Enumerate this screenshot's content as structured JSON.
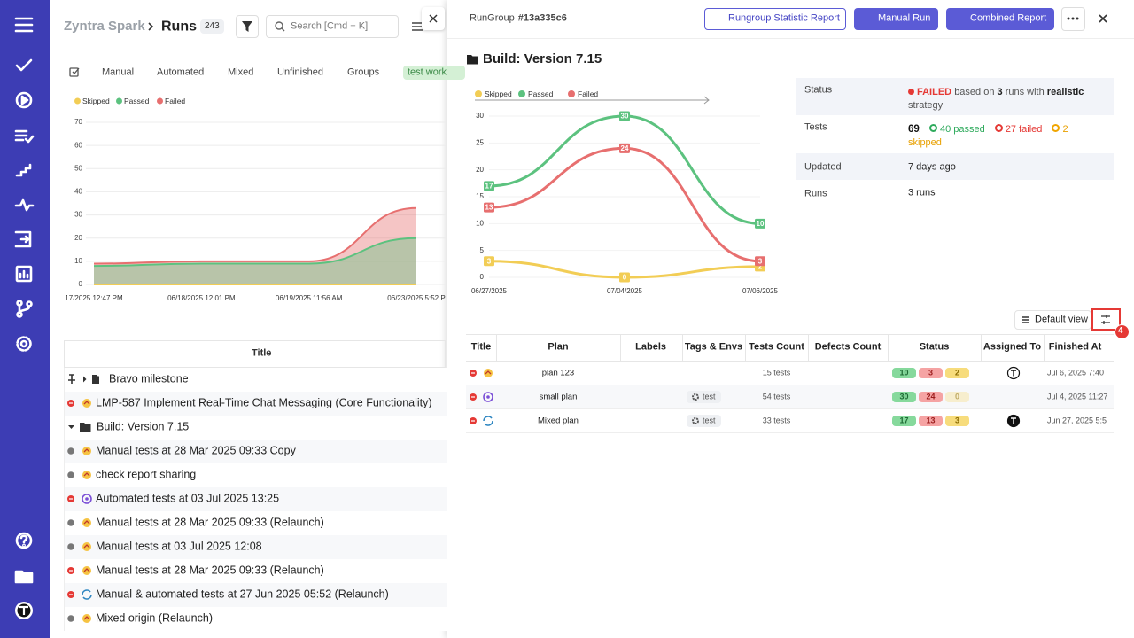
{
  "left": {
    "header": {
      "project": "Zyntra Spark",
      "page": "Runs",
      "count": 243,
      "search_placeholder": "Search [Cmd + K]"
    },
    "tabs": [
      "Manual",
      "Automated",
      "Mixed",
      "Unfinished",
      "Groups",
      "test work"
    ],
    "chart": {
      "type": "area",
      "categories": [
        "17/2025 12:47 PM",
        "06/18/2025 12:01 PM",
        "06/19/2025 11:56 AM",
        "06/23/2025 5:52 P"
      ],
      "series": [
        {
          "name": "Skipped",
          "color": "#f2cd55",
          "values": [
            0,
            0,
            0,
            0
          ]
        },
        {
          "name": "Passed",
          "color": "#5cc27f",
          "values": [
            8,
            9,
            9,
            20
          ]
        },
        {
          "name": "Failed",
          "color": "#e76f6f",
          "values": [
            9,
            10,
            10,
            33
          ]
        }
      ],
      "ylim": [
        0,
        70
      ],
      "yticks": [
        0,
        10,
        20,
        30,
        40,
        50,
        60,
        70
      ],
      "grid": true
    },
    "table": {
      "header": "Title",
      "rows": [
        {
          "title": "Bravo milestone",
          "kind": "milestone"
        },
        {
          "title": "LMP-587 Implement Real-Time Chat Messaging (Core Functionality)",
          "status": "failed",
          "icon": "manual"
        },
        {
          "title": "Build: Version 7.15",
          "kind": "group"
        },
        {
          "title": "Manual tests at 28 Mar 2025 09:33 Copy",
          "status": "unknown",
          "icon": "manual"
        },
        {
          "title": "check report sharing",
          "status": "unknown",
          "icon": "manual"
        },
        {
          "title": "Automated tests at 03 Jul 2025 13:25",
          "status": "failed",
          "icon": "automated"
        },
        {
          "title": "Manual tests at 28 Mar 2025 09:33 (Relaunch)",
          "status": "unknown",
          "icon": "manual"
        },
        {
          "title": "Manual tests at 03 Jul 2025 12:08",
          "status": "unknown",
          "icon": "manual"
        },
        {
          "title": "Manual tests at 28 Mar 2025 09:33 (Relaunch)",
          "status": "failed",
          "icon": "manual"
        },
        {
          "title": "Manual & automated tests at 27 Jun 2025 05:52 (Relaunch)",
          "status": "failed",
          "icon": "mixed"
        },
        {
          "title": "Mixed origin (Relaunch)",
          "status": "unknown",
          "icon": "manual"
        }
      ]
    }
  },
  "panel": {
    "header": {
      "label": "RunGroup",
      "id": "#13a335c6",
      "buttons": [
        "Rungroup Statistic Report",
        "Manual Run",
        "Combined Report"
      ]
    },
    "title": "Build: Version 7.15",
    "chart": {
      "type": "line",
      "categories": [
        "06/27/2025",
        "07/04/2025",
        "07/06/2025"
      ],
      "series": [
        {
          "name": "Skipped",
          "color": "#f2cd55",
          "values": [
            3,
            0,
            2
          ]
        },
        {
          "name": "Passed",
          "color": "#5cc27f",
          "values": [
            17,
            30,
            10
          ]
        },
        {
          "name": "Failed",
          "color": "#e76f6f",
          "values": [
            13,
            24,
            3
          ]
        }
      ],
      "ylim": [
        0,
        30
      ],
      "yticks": [
        0,
        5,
        10,
        15,
        20,
        25,
        30
      ],
      "grid": true
    },
    "info": {
      "status": {
        "label": "Status",
        "value": "FAILED",
        "based_on": "based on",
        "runs": 3,
        "runs_with": "runs with",
        "strategy": "realistic",
        "strategy_word": "strategy"
      },
      "tests": {
        "label": "Tests",
        "total": 69,
        "separator": ":",
        "passed": "40 passed",
        "failed": "27 failed",
        "skipped": "2 skipped"
      },
      "updated": {
        "label": "Updated",
        "value": "7 days ago"
      },
      "runs": {
        "label": "Runs",
        "value": "3 runs"
      }
    },
    "view": {
      "label": "Default view",
      "filter_count": 4
    },
    "table": {
      "columns": [
        "Title",
        "Plan",
        "Labels",
        "Tags & Envs",
        "Tests Count",
        "Defects Count",
        "Status",
        "Assigned To",
        "Finished At"
      ],
      "rows": [
        {
          "plan": "plan 123",
          "tests": "15 tests",
          "status": [
            10,
            3,
            2
          ],
          "finished": "Jul 6, 2025 7:40",
          "icon": "manual",
          "assigned": "outline"
        },
        {
          "plan": "small plan",
          "tag": "test",
          "tests": "54 tests",
          "status": [
            30,
            24,
            0
          ],
          "finished": "Jul 4, 2025 11:27",
          "icon": "automated"
        },
        {
          "plan": "Mixed plan",
          "tag": "test",
          "tests": "33 tests",
          "status": [
            17,
            13,
            3
          ],
          "finished": "Jun 27, 2025 5:5",
          "icon": "mixed",
          "assigned": "filled"
        }
      ]
    }
  }
}
